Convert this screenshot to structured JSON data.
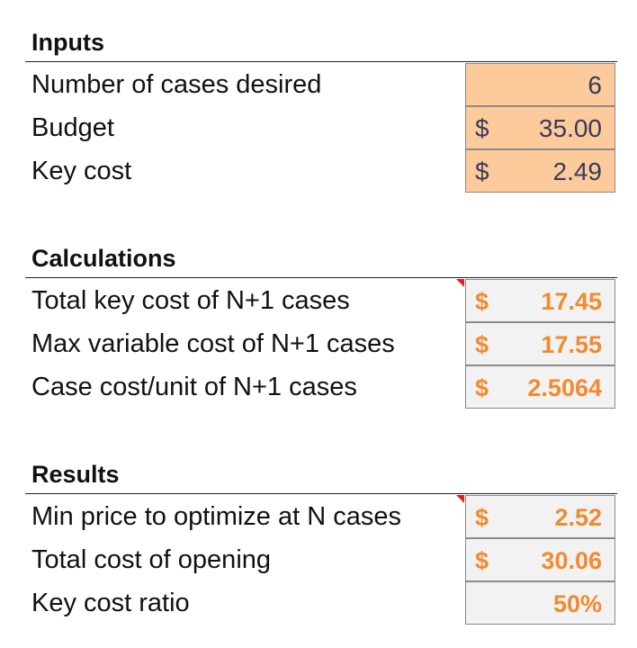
{
  "inputs": {
    "title": "Inputs",
    "rows": [
      {
        "label": "Number of cases desired",
        "currency": "",
        "value": "6"
      },
      {
        "label": "Budget",
        "currency": "$",
        "value": "35.00"
      },
      {
        "label": "Key cost",
        "currency": "$",
        "value": "2.49"
      }
    ]
  },
  "calculations": {
    "title": "Calculations",
    "rows": [
      {
        "label": "Total key cost of N+1 cases",
        "currency": "$",
        "value": "17.45"
      },
      {
        "label": "Max variable cost of N+1 cases",
        "currency": "$",
        "value": "17.55"
      },
      {
        "label": "Case cost/unit of N+1 cases",
        "currency": "$",
        "value": "2.5064"
      }
    ]
  },
  "results": {
    "title": "Results",
    "rows": [
      {
        "label": "Min price to optimize at N cases",
        "currency": "$",
        "value": "2.52"
      },
      {
        "label": "Total cost of opening",
        "currency": "$",
        "value": "30.06"
      },
      {
        "label": "Key cost ratio",
        "currency": "",
        "value": "50%"
      }
    ]
  },
  "colors": {
    "input_fill": "#fcca9b",
    "input_text": "#3a3a5c",
    "calc_fill": "#f2f2f2",
    "calc_text": "#f28a2e",
    "comment_flag": "#e02020"
  }
}
